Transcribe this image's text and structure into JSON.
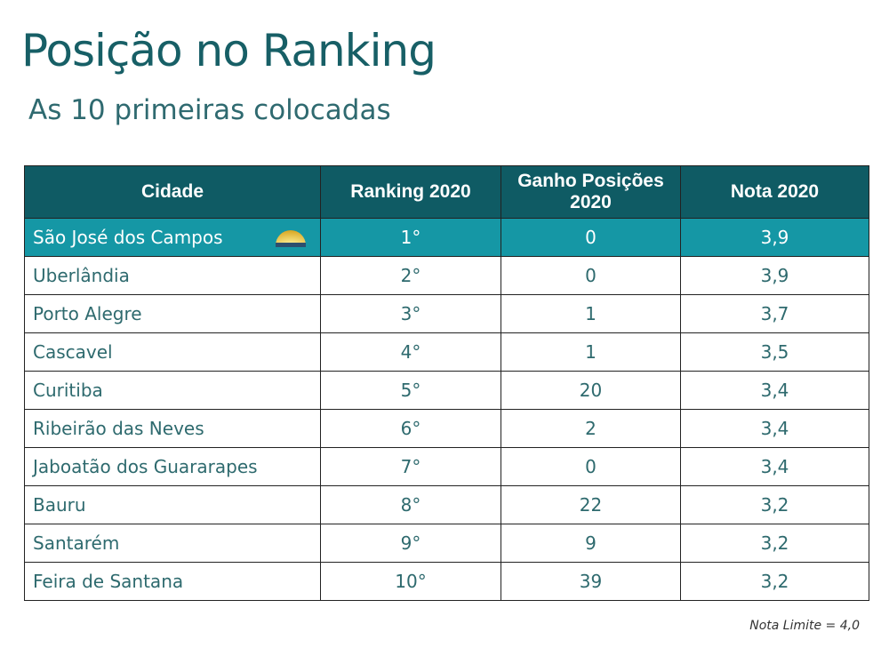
{
  "title": "Posição no Ranking",
  "subtitle": "As 10 primeiras colocadas",
  "table": {
    "headers": [
      "Cidade",
      "Ranking 2020",
      "Ganho Posições 2020",
      "Nota 2020"
    ],
    "rows": [
      [
        "São José dos Campos",
        "1°",
        "0",
        "3,9"
      ],
      [
        "Uberlândia",
        "2°",
        "0",
        "3,9"
      ],
      [
        "Porto Alegre",
        "3°",
        "1",
        "3,7"
      ],
      [
        "Cascavel",
        "4°",
        "1",
        "3,5"
      ],
      [
        "Curitiba",
        "5°",
        "20",
        "3,4"
      ],
      [
        "Ribeirão das Neves",
        "6°",
        "2",
        "3,4"
      ],
      [
        "Jaboatão dos Guararapes",
        "7°",
        "0",
        "3,4"
      ],
      [
        "Bauru",
        "8°",
        "22",
        "3,2"
      ],
      [
        "Santarém",
        "9°",
        "9",
        "3,2"
      ],
      [
        "Feira de Santana",
        "10°",
        "39",
        "3,2"
      ]
    ],
    "highlight_icon": "sun-logo-icon"
  },
  "footnote": "Nota Limite = 4,0",
  "colors": {
    "header": "#0f5b64",
    "highlight": "#1597a5",
    "text": "#2e6a6e"
  }
}
